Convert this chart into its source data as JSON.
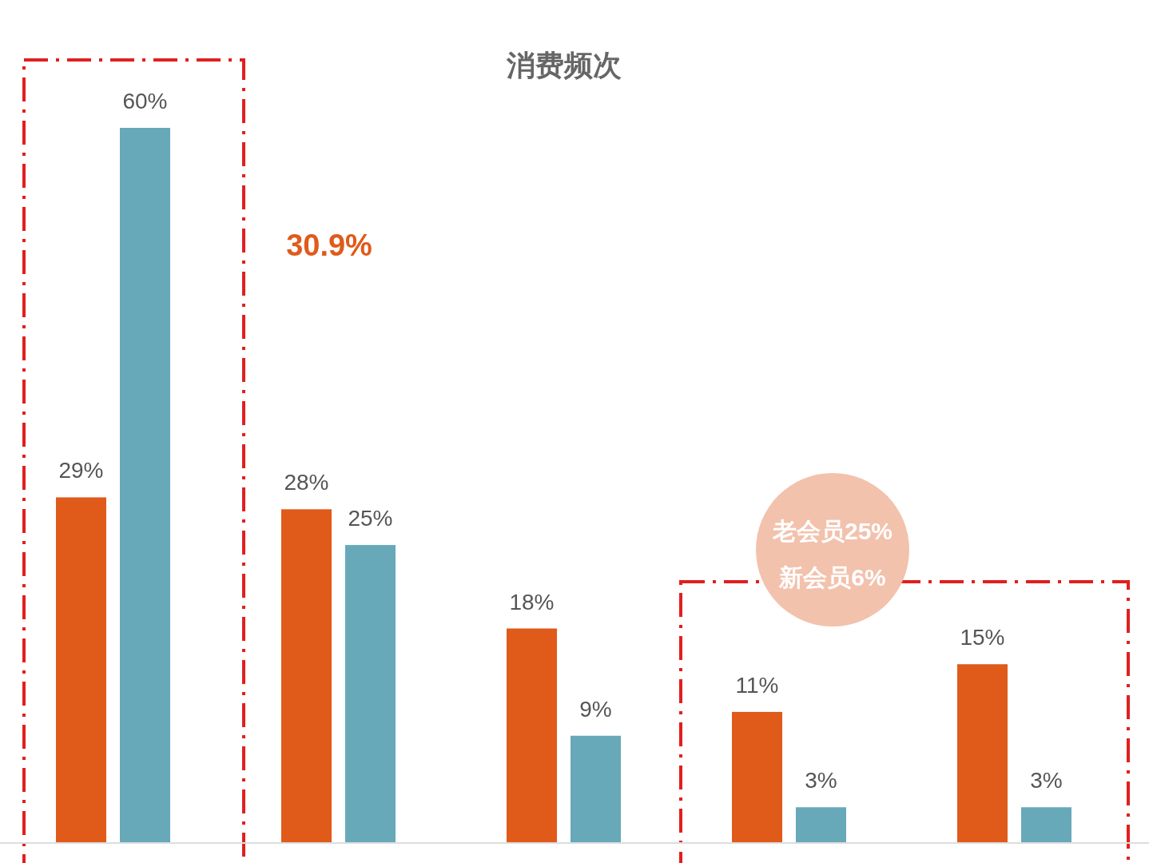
{
  "chart_data": {
    "type": "bar",
    "title": "消费频次",
    "categories": [
      null,
      null,
      null,
      null,
      null
    ],
    "series": [
      {
        "color": "#e05a1a",
        "values": [
          29,
          28,
          18,
          11,
          15
        ],
        "value_labels": [
          "29%",
          "28%",
          "18%",
          "11%",
          "15%"
        ]
      },
      {
        "color": "#67a9b8",
        "values": [
          60,
          25,
          9,
          3,
          3
        ],
        "value_labels": [
          "60%",
          "25%",
          "9%",
          "3%",
          "3%"
        ]
      }
    ],
    "annotations": [
      "30.9%",
      "老会员25%",
      "新会员6%"
    ]
  }
}
